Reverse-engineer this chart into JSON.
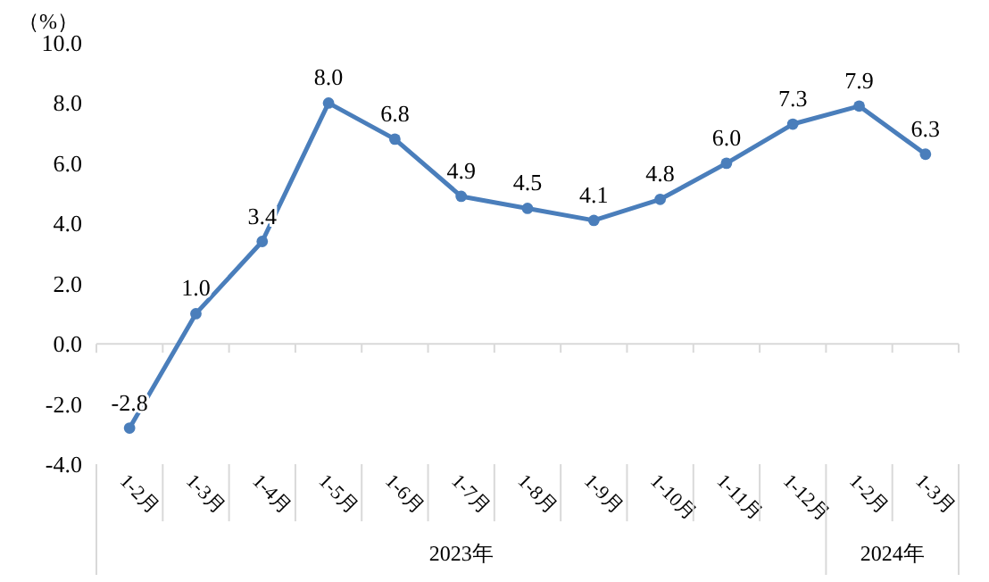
{
  "chart_data": {
    "type": "line",
    "ylabel": "（%）",
    "categories": [
      "1-2月",
      "1-3月",
      "1-4月",
      "1-5月",
      "1-6月",
      "1-7月",
      "1-8月",
      "1-9月",
      "1-10月",
      "1-11月",
      "1-12月",
      "1-2月",
      "1-3月"
    ],
    "series": [
      {
        "color": "#4a7ebb",
        "values": [
          -2.8,
          1.0,
          3.4,
          8.0,
          6.8,
          4.9,
          4.5,
          4.1,
          4.8,
          6.0,
          7.3,
          7.9,
          6.3
        ],
        "value_labels": [
          "-2.8",
          "1.0",
          "3.4",
          "8.0",
          "6.8",
          "4.9",
          "4.5",
          "4.1",
          "4.8",
          "6.0",
          "7.3",
          "7.9",
          "6.3"
        ]
      }
    ],
    "ylim": [
      -4,
      10
    ],
    "yticks": [
      {
        "value": -4,
        "label": "-4.0"
      },
      {
        "value": -2,
        "label": "-2.0"
      },
      {
        "value": 0,
        "label": "0.0"
      },
      {
        "value": 2,
        "label": "2.0"
      },
      {
        "value": 4,
        "label": "4.0"
      },
      {
        "value": 6,
        "label": "6.0"
      },
      {
        "value": 8,
        "label": "8.0"
      },
      {
        "value": 10,
        "label": "10.0"
      }
    ],
    "annotations": [
      "2023年",
      "2024年"
    ],
    "marker": "circle",
    "line_style": "solid"
  }
}
